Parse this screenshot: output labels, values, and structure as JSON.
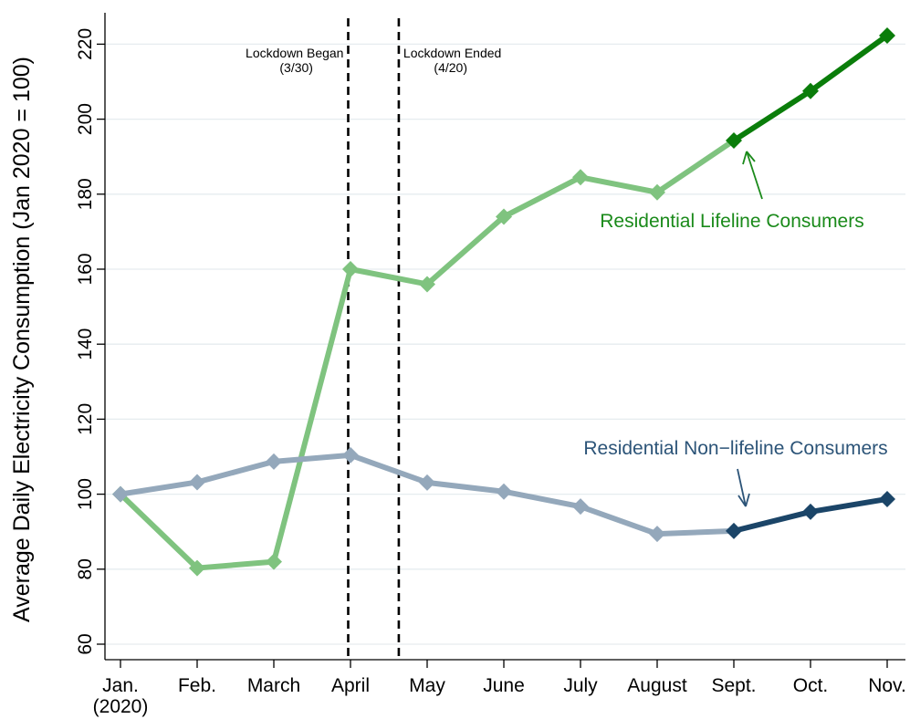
{
  "chart_data": {
    "type": "line",
    "ylabel": "Average Daily Electricity Consumption (Jan 2020 = 100)",
    "xlabel": "",
    "ylim": [
      55,
      225
    ],
    "yticks": [
      60,
      80,
      100,
      120,
      140,
      160,
      180,
      200,
      220
    ],
    "grid": true,
    "categories": [
      {
        "label": "Jan.",
        "sublabel": "(2020)"
      },
      {
        "label": "Feb.",
        "sublabel": ""
      },
      {
        "label": "March",
        "sublabel": ""
      },
      {
        "label": "April",
        "sublabel": ""
      },
      {
        "label": "May",
        "sublabel": ""
      },
      {
        "label": "June",
        "sublabel": ""
      },
      {
        "label": "July",
        "sublabel": ""
      },
      {
        "label": "August",
        "sublabel": ""
      },
      {
        "label": "Sept.",
        "sublabel": ""
      },
      {
        "label": "Oct.",
        "sublabel": ""
      },
      {
        "label": "Nov.",
        "sublabel": ""
      }
    ],
    "events": [
      {
        "label": "Lockdown Began",
        "sublabel": "(3/30)",
        "x": 2.97,
        "label_side": "left"
      },
      {
        "label": "Lockdown Ended",
        "sublabel": "(4/20)",
        "x": 3.63,
        "label_side": "right"
      }
    ],
    "series": [
      {
        "name": "Residential Lifeline Consumers",
        "values": [
          100,
          80.3,
          82,
          160,
          156,
          174,
          184.5,
          180.5,
          194.3,
          207.5,
          222.3
        ],
        "color_early": "#7fc37f",
        "color_late": "#0a7d0a",
        "label_color": "#1a8a1a",
        "highlight_from_index": 8
      },
      {
        "name": "Residential Non−lifeline Consumers",
        "values": [
          100,
          103.2,
          108.7,
          110.4,
          103.1,
          100.7,
          96.7,
          89.4,
          90.2,
          95.3,
          98.7
        ],
        "color_early": "#94a8bb",
        "color_late": "#1b4568",
        "label_color": "#2c5478",
        "highlight_from_index": 8
      }
    ]
  }
}
